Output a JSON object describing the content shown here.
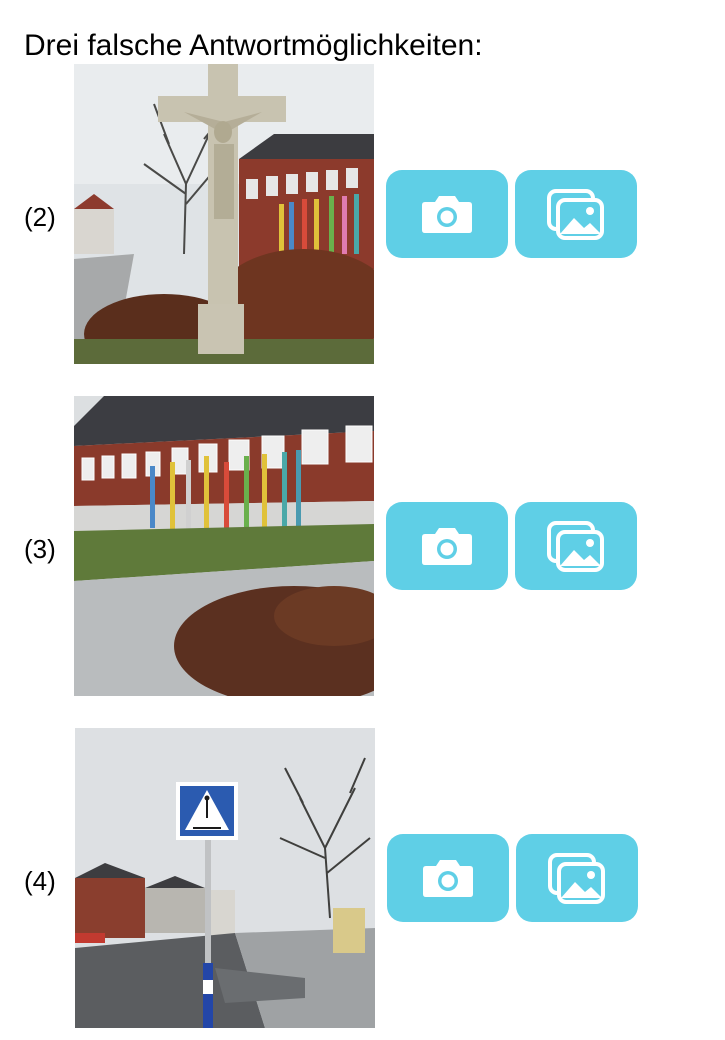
{
  "heading": "Drei falsche Antwortmöglichkeiten:",
  "colors": {
    "button_bg": "#5fcfe6",
    "icon": "#ffffff"
  },
  "icons": {
    "camera": "camera-icon",
    "gallery": "photo-gallery-icon"
  },
  "options": [
    {
      "number_label": "(2)",
      "photo": "wayside-cross-crucifix-photo"
    },
    {
      "number_label": "(3)",
      "photo": "school-building-painted-poles-photo"
    },
    {
      "number_label": "(4)",
      "photo": "pedestrian-crossing-sign-street-photo"
    }
  ]
}
